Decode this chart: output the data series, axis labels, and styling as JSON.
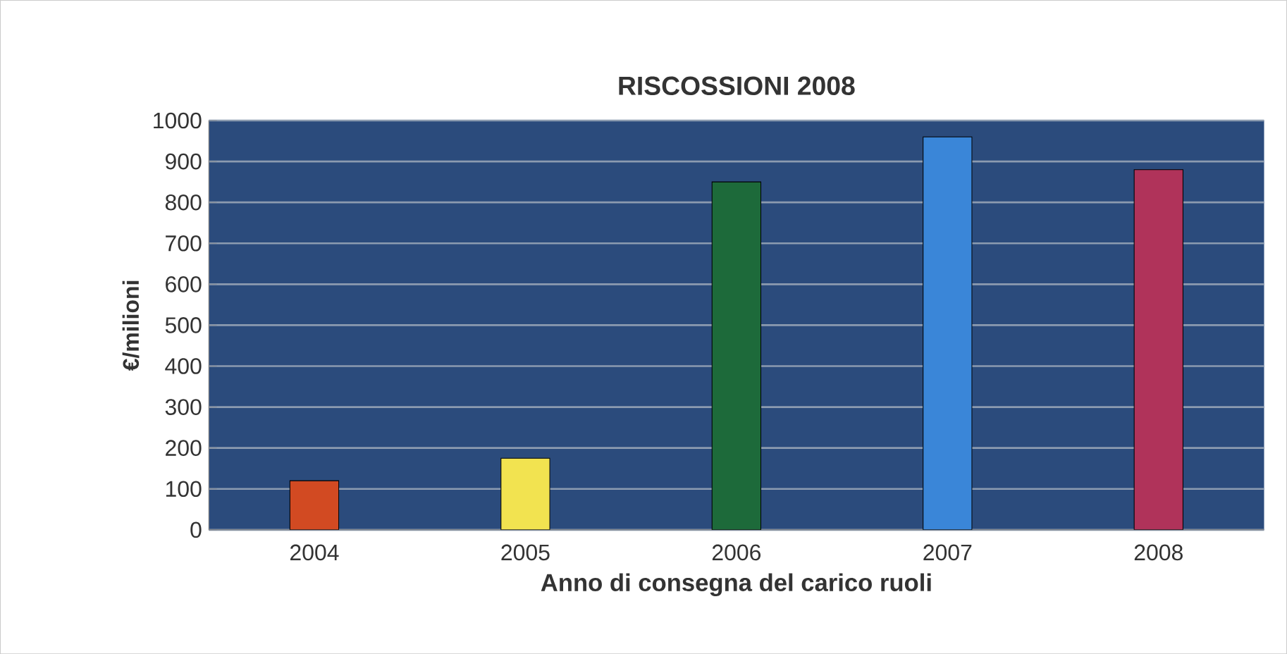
{
  "chart_data": {
    "type": "bar",
    "title": "RISCOSSIONI 2008",
    "xlabel": "Anno di consegna del carico ruoli",
    "ylabel": "€/milioni",
    "categories": [
      "2004",
      "2005",
      "2006",
      "2007",
      "2008"
    ],
    "values": [
      120,
      175,
      850,
      960,
      880
    ],
    "colors": [
      "#d24a22",
      "#f2e350",
      "#1d6a3a",
      "#3a86d8",
      "#b0335a"
    ],
    "ylim": [
      0,
      1000
    ],
    "yticks": [
      0,
      100,
      200,
      300,
      400,
      500,
      600,
      700,
      800,
      900,
      1000
    ],
    "grid": "y"
  }
}
